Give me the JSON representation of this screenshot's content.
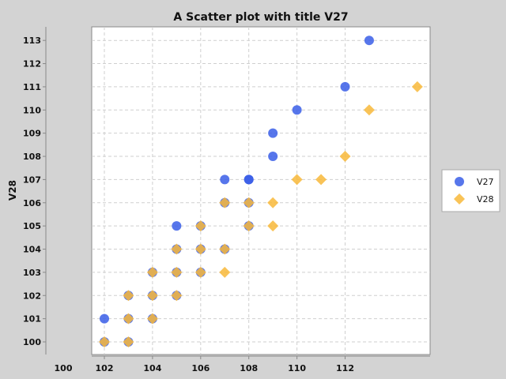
{
  "chart_data": {
    "type": "scatter",
    "title": "A Scatter plot with title V27",
    "xlabel": "",
    "ylabel": "V28",
    "xlim": [
      100,
      114
    ],
    "ylim": [
      99.5,
      113.5
    ],
    "x_ticks": [
      100,
      102,
      104,
      106,
      108,
      110,
      112
    ],
    "y_ticks": [
      100,
      101,
      102,
      103,
      104,
      105,
      106,
      107,
      108,
      109,
      110,
      111,
      112,
      113
    ],
    "grid": true,
    "legend_position": "right",
    "series": [
      {
        "name": "V27",
        "marker": "circle",
        "color": "#3a5ee8",
        "points": [
          [
            102,
            100
          ],
          [
            102,
            101
          ],
          [
            103,
            100
          ],
          [
            103,
            101
          ],
          [
            103,
            102
          ],
          [
            104,
            101
          ],
          [
            104,
            102
          ],
          [
            104,
            103
          ],
          [
            105,
            102
          ],
          [
            105,
            103
          ],
          [
            105,
            104
          ],
          [
            105,
            105
          ],
          [
            106,
            103
          ],
          [
            106,
            104
          ],
          [
            106,
            105
          ],
          [
            107,
            104
          ],
          [
            107,
            106
          ],
          [
            107,
            107
          ],
          [
            108,
            105
          ],
          [
            108,
            106
          ],
          [
            108,
            107
          ],
          [
            108,
            107
          ],
          [
            109,
            108
          ],
          [
            109,
            109
          ],
          [
            110,
            110
          ],
          [
            112,
            111
          ],
          [
            113,
            113
          ]
        ]
      },
      {
        "name": "V28",
        "marker": "diamond",
        "color": "#f8b93a",
        "points": [
          [
            102,
            100
          ],
          [
            103,
            100
          ],
          [
            103,
            101
          ],
          [
            103,
            102
          ],
          [
            104,
            101
          ],
          [
            104,
            102
          ],
          [
            104,
            103
          ],
          [
            105,
            102
          ],
          [
            105,
            103
          ],
          [
            105,
            104
          ],
          [
            106,
            103
          ],
          [
            106,
            104
          ],
          [
            106,
            105
          ],
          [
            107,
            103
          ],
          [
            107,
            104
          ],
          [
            107,
            106
          ],
          [
            108,
            105
          ],
          [
            108,
            106
          ],
          [
            109,
            105
          ],
          [
            109,
            106
          ],
          [
            110,
            107
          ],
          [
            111,
            107
          ],
          [
            112,
            108
          ],
          [
            113,
            110
          ],
          [
            115,
            111
          ]
        ]
      }
    ]
  }
}
